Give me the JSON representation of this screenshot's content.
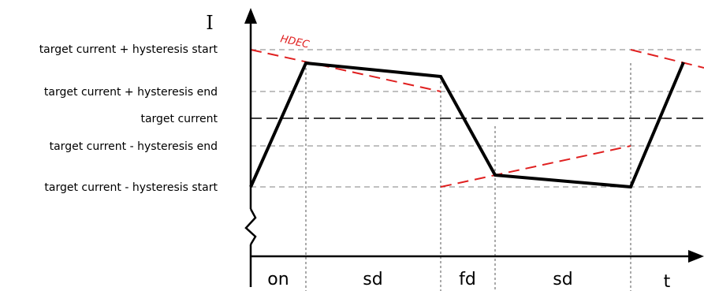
{
  "axes": {
    "y_label": "I",
    "x_label": "t"
  },
  "levels": [
    {
      "id": "hyst-start-high",
      "label": "target current + hysteresis start"
    },
    {
      "id": "hyst-end-high",
      "label": "target current + hysteresis end"
    },
    {
      "id": "target",
      "label": "target current"
    },
    {
      "id": "hyst-end-low",
      "label": "target current - hysteresis end"
    },
    {
      "id": "hyst-start-low",
      "label": "target current - hysteresis start"
    }
  ],
  "phases": [
    {
      "id": "on",
      "label": "on"
    },
    {
      "id": "sd1",
      "label": "sd"
    },
    {
      "id": "fd",
      "label": "fd"
    },
    {
      "id": "sd2",
      "label": "sd"
    }
  ],
  "annotation": {
    "hdec_label": "HDEC"
  },
  "colors": {
    "current": "#000000",
    "hdec": "#e02020",
    "grid": "#9a9a9a",
    "target": "#000000"
  }
}
